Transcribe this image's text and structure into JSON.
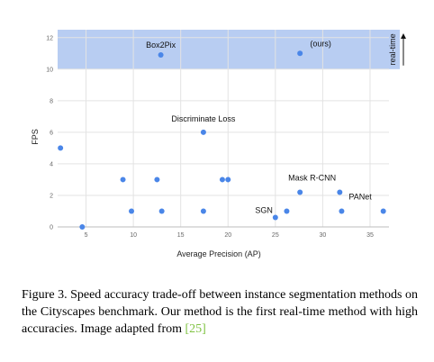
{
  "chart_data": {
    "type": "scatter",
    "xlabel": "Average Precision (AP)",
    "ylabel": "FPS",
    "xlim": [
      2,
      37
    ],
    "ylim": [
      0,
      12.5
    ],
    "xticks": [
      5,
      10,
      15,
      20,
      25,
      30,
      35
    ],
    "yticks": [
      0,
      2,
      4,
      6,
      8,
      10,
      12
    ],
    "grid": true,
    "highlight_region": {
      "y_from": 10,
      "label": "real-time",
      "color": "#b8cdf2"
    },
    "point_color": "#4a86e8",
    "points": [
      {
        "x": 2.3,
        "y": 5.0
      },
      {
        "x": 4.6,
        "y": 0.0
      },
      {
        "x": 8.9,
        "y": 3.0
      },
      {
        "x": 9.8,
        "y": 1.0
      },
      {
        "x": 12.5,
        "y": 3.0
      },
      {
        "x": 12.9,
        "y": 10.9,
        "label": "Box2Pix"
      },
      {
        "x": 13.0,
        "y": 1.0
      },
      {
        "x": 17.4,
        "y": 6.0,
        "label": "Discriminate Loss"
      },
      {
        "x": 17.4,
        "y": 1.0
      },
      {
        "x": 19.4,
        "y": 3.0
      },
      {
        "x": 20.0,
        "y": 3.0
      },
      {
        "x": 25.0,
        "y": 0.6,
        "label": "SGN"
      },
      {
        "x": 26.2,
        "y": 1.0
      },
      {
        "x": 27.6,
        "y": 11.0,
        "label": "(ours)"
      },
      {
        "x": 27.6,
        "y": 2.2,
        "label": "Mask R-CNN"
      },
      {
        "x": 31.8,
        "y": 2.2
      },
      {
        "x": 32.0,
        "y": 1.0,
        "label": "PANet"
      },
      {
        "x": 36.4,
        "y": 1.0
      }
    ]
  },
  "caption": {
    "text": "Figure 3. Speed accuracy trade-off between instance segmentation methods on the Cityscapes benchmark.  Our method is the first real-time method with high accuracies. Image adapted from ",
    "citation": "[25]"
  }
}
